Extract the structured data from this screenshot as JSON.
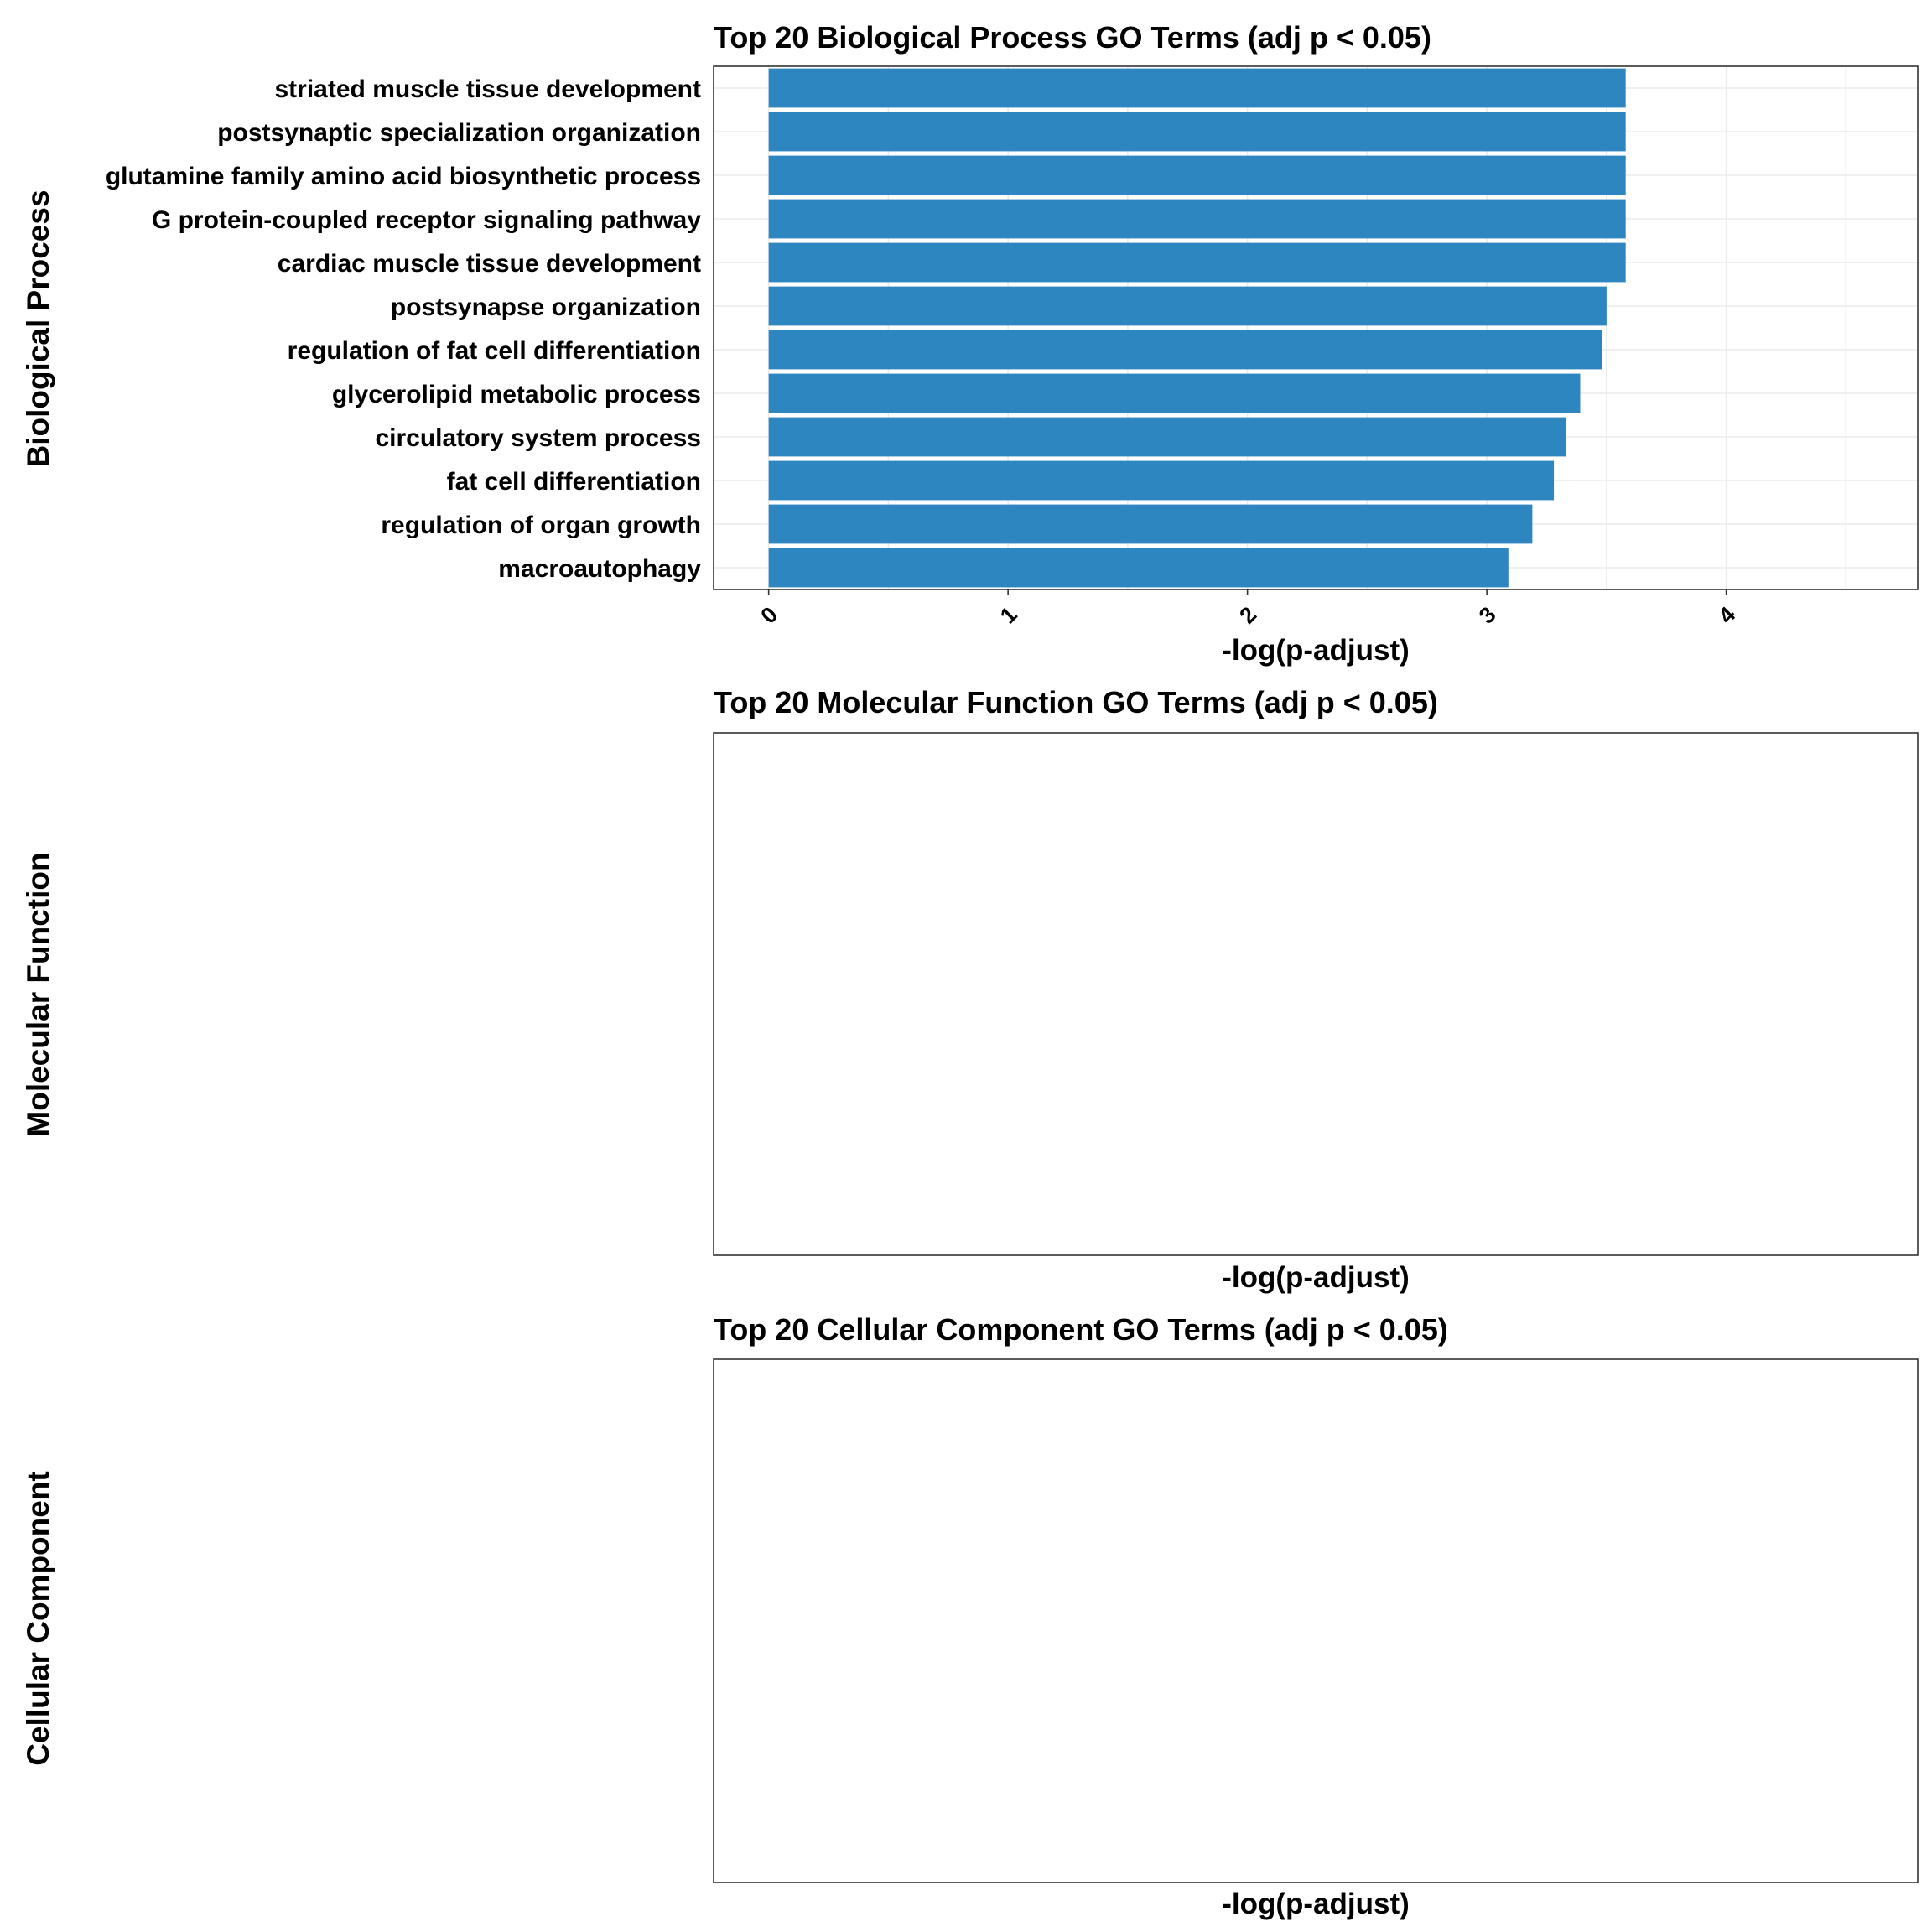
{
  "chart_data": [
    {
      "type": "bar",
      "orientation": "horizontal",
      "title": "Top 20 Biological Process GO Terms (adj p < 0.05)",
      "strip_label": "Biological Process",
      "xlabel": "-log(p-adjust)",
      "ylabel": "",
      "xlim": [
        -0.23,
        4.8
      ],
      "xticks": [
        "0",
        "1",
        "2",
        "3",
        "4"
      ],
      "grid": true,
      "bar_color": "#2E86C1",
      "categories": [
        "striated muscle tissue development",
        "postsynaptic specialization organization",
        "glutamine family amino acid biosynthetic process",
        "G protein-coupled receptor signaling pathway",
        "cardiac muscle tissue development",
        "postsynapse organization",
        "regulation of fat cell differentiation",
        "glycerolipid metabolic process",
        "circulatory system process",
        "fat cell differentiation",
        "regulation of organ growth",
        "macroautophagy"
      ],
      "values": [
        3.58,
        3.58,
        3.58,
        3.58,
        3.58,
        3.5,
        3.48,
        3.39,
        3.33,
        3.28,
        3.19,
        3.09
      ]
    },
    {
      "type": "bar",
      "orientation": "horizontal",
      "title": "Top 20 Molecular Function GO Terms (adj p < 0.05)",
      "strip_label": "Molecular Function",
      "xlabel": "-log(p-adjust)",
      "categories": [],
      "values": []
    },
    {
      "type": "bar",
      "orientation": "horizontal",
      "title": "Top 20 Cellular Component GO Terms (adj p < 0.05)",
      "strip_label": "Cellular Component",
      "xlabel": "-log(p-adjust)",
      "categories": [],
      "values": []
    }
  ]
}
